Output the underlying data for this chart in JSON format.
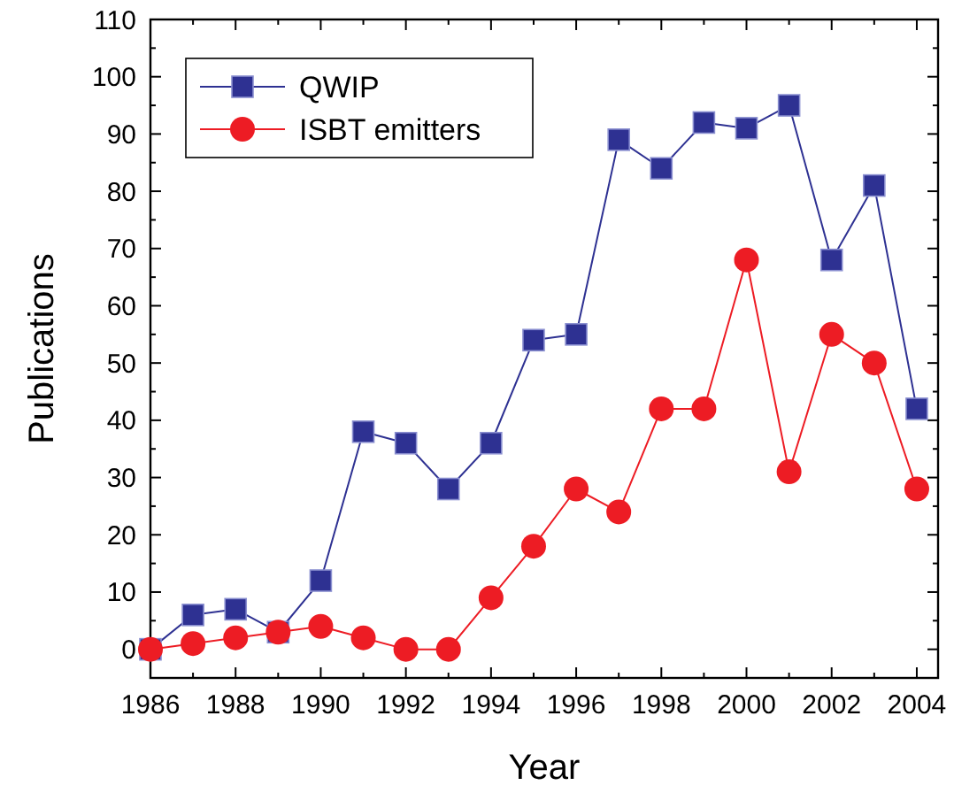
{
  "chart_data": {
    "type": "line",
    "xlabel": "Year",
    "ylabel": "Publications",
    "x": [
      1986,
      1987,
      1988,
      1989,
      1990,
      1991,
      1992,
      1993,
      1994,
      1995,
      1996,
      1997,
      1998,
      1999,
      2000,
      2001,
      2002,
      2003,
      2004
    ],
    "series": [
      {
        "name": "QWIP",
        "color": "#2e3192",
        "marker": "square",
        "values": [
          0,
          6,
          7,
          3,
          12,
          38,
          36,
          28,
          36,
          54,
          55,
          89,
          84,
          92,
          91,
          95,
          68,
          81,
          42
        ]
      },
      {
        "name": "ISBT emitters",
        "color": "#ed1c24",
        "marker": "circle",
        "values": [
          0,
          1,
          2,
          3,
          4,
          2,
          0,
          0,
          9,
          18,
          28,
          24,
          42,
          42,
          68,
          31,
          55,
          50,
          28
        ]
      }
    ],
    "xlim": [
      1986,
      2004.5
    ],
    "xticks": [
      1986,
      1988,
      1990,
      1992,
      1994,
      1996,
      1998,
      2000,
      2002,
      2004
    ],
    "ylim": [
      -5,
      110
    ],
    "yticks": [
      0,
      10,
      20,
      30,
      40,
      50,
      60,
      70,
      80,
      90,
      100,
      110
    ],
    "grid": false,
    "legend": "top left"
  }
}
